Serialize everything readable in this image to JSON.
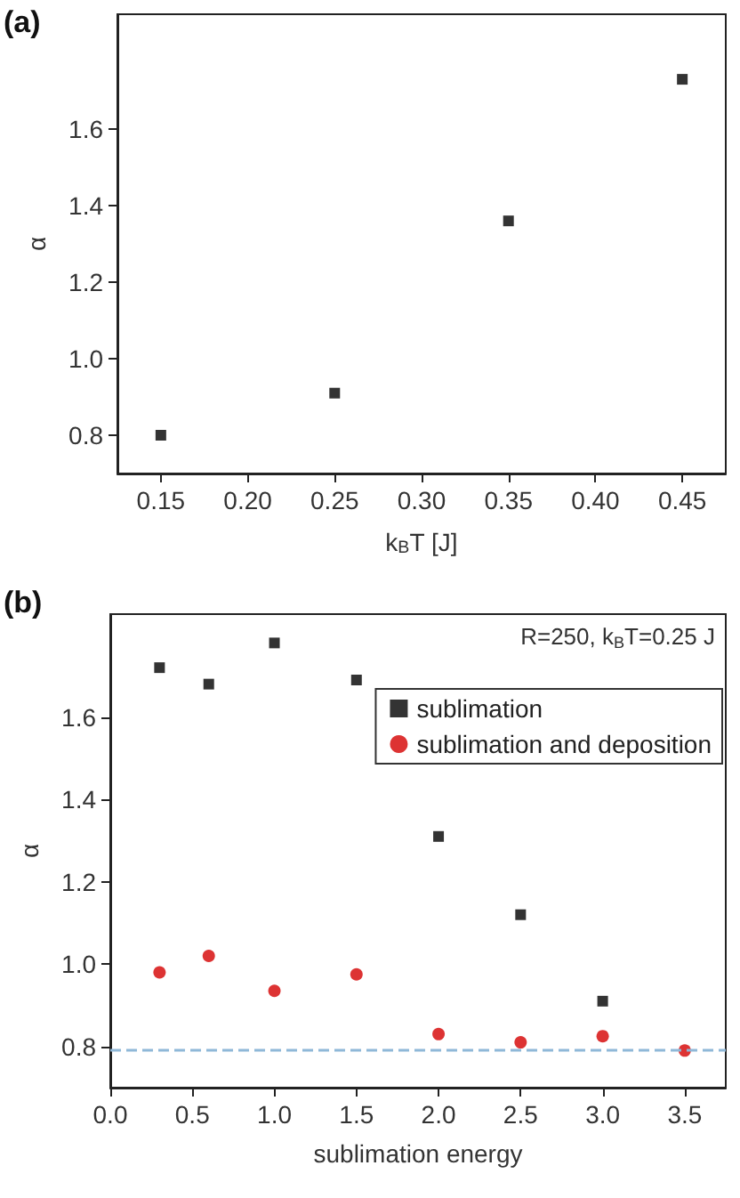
{
  "chart_data": [
    {
      "type": "scatter",
      "title": "(a)",
      "xlabel": "k$_{B}$T [J]",
      "ylabel": "α",
      "x": [
        0.15,
        0.25,
        0.35,
        0.45
      ],
      "series": [
        {
          "color": "#000000",
          "marker": "square",
          "values": [
            0.8,
            0.91,
            1.36,
            1.73
          ]
        }
      ],
      "xlim": [
        0.125,
        0.475
      ],
      "xticks": [
        0.15,
        {
          "value": 0.2,
          "label": "0.20"
        },
        0.25,
        {
          "value": 0.3,
          "label": "0.30"
        },
        0.35,
        {
          "value": 0.4,
          "label": "0.40"
        },
        0.45
      ],
      "ylim": [
        0.7,
        1.9
      ],
      "yticks": [
        0.8,
        {
          "value": 1.0,
          "label": "1.0"
        },
        1.2,
        1.4,
        1.6
      ],
      "grid": false,
      "legend": false
    },
    {
      "type": "scatter",
      "title": "(b)",
      "xlabel": "sublimation energy",
      "ylabel": "α",
      "annotations": [
        "R=250, k$_{B}$T=0.25 J"
      ],
      "series": [
        {
          "name": "sublimation",
          "color": "#000000",
          "marker": "square",
          "x": [
            0.3,
            0.6,
            1.0,
            1.5,
            2.0,
            2.5,
            3.0
          ],
          "values": [
            1.72,
            1.68,
            1.78,
            1.69,
            1.31,
            1.12,
            0.91
          ]
        },
        {
          "name": "sublimation and deposition",
          "color": "#d40000",
          "marker": "circle",
          "x": [
            0.3,
            0.6,
            1.0,
            1.5,
            2.0,
            2.5,
            3.0,
            3.5
          ],
          "values": [
            0.98,
            1.02,
            0.935,
            0.975,
            0.83,
            0.81,
            0.825,
            0.79
          ]
        }
      ],
      "ref_lines": [
        {
          "axis": "y",
          "value": 0.79,
          "color": "#8fb8d8",
          "line_style": "dashed"
        }
      ],
      "xlim": [
        0.0,
        3.75
      ],
      "xticks": [
        {
          "value": 0,
          "label": "0.0"
        },
        0.5,
        {
          "value": 1,
          "label": "1.0"
        },
        1.5,
        {
          "value": 2,
          "label": "2.0"
        },
        2.5,
        {
          "value": 3,
          "label": "3.0"
        },
        3.5
      ],
      "ylim": [
        0.7,
        1.85
      ],
      "yticks": [
        0.8,
        {
          "value": 1.0,
          "label": "1.0"
        },
        1.2,
        1.4,
        1.6
      ],
      "grid": false,
      "legend": "top right"
    }
  ]
}
